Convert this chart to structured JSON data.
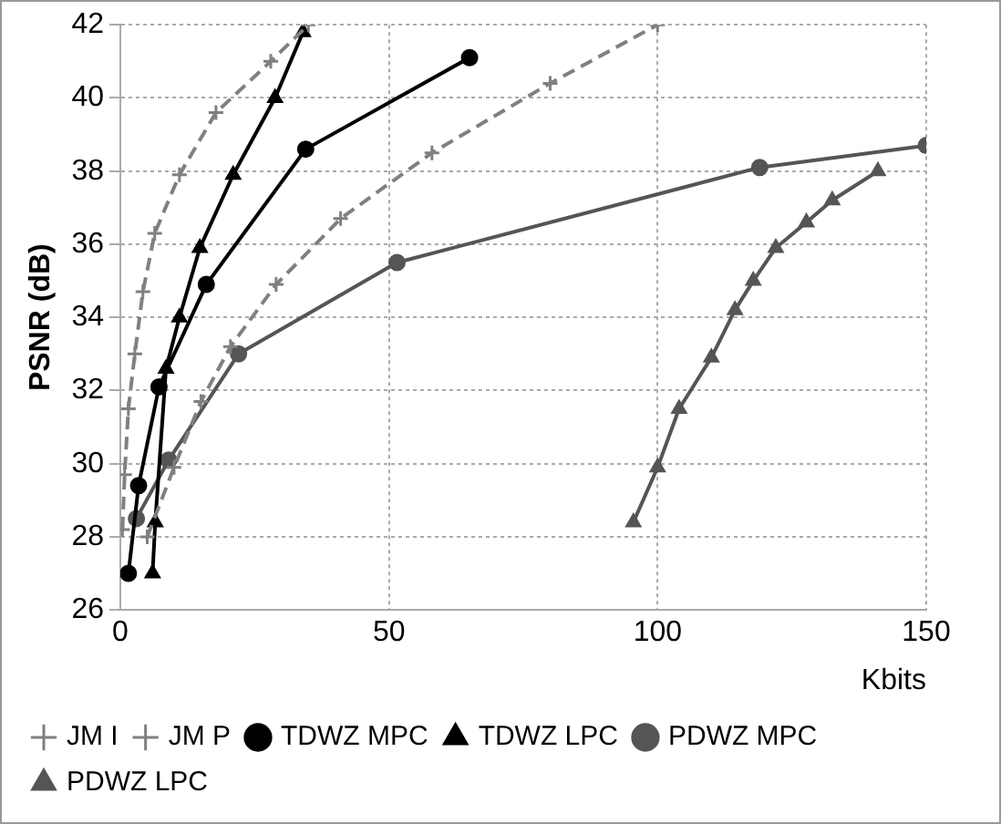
{
  "chart_data": {
    "type": "line",
    "xlabel": "Kbits",
    "ylabel": "PSNR (dB)",
    "xlim": [
      0,
      150
    ],
    "xticks": [
      0,
      50,
      100,
      150
    ],
    "ylim": [
      26,
      42
    ],
    "yticks": [
      26,
      28,
      30,
      32,
      34,
      36,
      38,
      40,
      42
    ],
    "grid": true,
    "legend": "bottom",
    "series": [
      {
        "name": "JM I",
        "color": "#808080",
        "line_style": "dashed",
        "marker": "cross",
        "x": [
          5,
          10,
          15,
          20.5,
          29,
          41,
          58,
          80,
          100
        ],
        "values": [
          28,
          29.9,
          31.7,
          33.2,
          34.9,
          36.7,
          38.5,
          40.4,
          42
        ]
      },
      {
        "name": "JM P",
        "color": "#808080",
        "line_style": "dashed",
        "marker": "cross",
        "x": [
          0.4,
          0.8,
          1.5,
          2.7,
          4.2,
          6.4,
          11,
          17.8,
          28,
          35
        ],
        "values": [
          28.2,
          29.7,
          31.5,
          33,
          34.7,
          36.3,
          37.9,
          39.6,
          41,
          42
        ]
      },
      {
        "name": "TDWZ MPC",
        "color": "#000000",
        "line_style": "solid",
        "marker": "circle",
        "x": [
          1.5,
          3.4,
          7.2,
          16,
          34.5,
          65
        ],
        "values": [
          27,
          29.4,
          32.1,
          34.9,
          38.6,
          41.1
        ]
      },
      {
        "name": "TDWZ LPC",
        "color": "#000000",
        "line_style": "solid",
        "marker": "triangle",
        "x": [
          6,
          6.5,
          8.5,
          11,
          14.8,
          21,
          28.8,
          34
        ],
        "values": [
          27,
          28.4,
          32.6,
          34,
          35.9,
          37.9,
          40,
          41.8
        ]
      },
      {
        "name": "PDWZ MPC",
        "color": "#555555",
        "line_style": "solid",
        "marker": "circle",
        "x": [
          3,
          9,
          22,
          51.5,
          119,
          150
        ],
        "values": [
          28.5,
          30.1,
          33,
          35.5,
          38.1,
          38.7
        ]
      },
      {
        "name": "PDWZ LPC",
        "color": "#555555",
        "line_style": "solid",
        "marker": "triangle",
        "x": [
          95.5,
          100,
          104,
          110,
          114.4,
          117.8,
          122,
          127.7,
          132.5,
          141
        ],
        "values": [
          28.4,
          29.9,
          31.5,
          32.9,
          34.2,
          35,
          35.9,
          36.6,
          37.2,
          38
        ]
      }
    ]
  }
}
